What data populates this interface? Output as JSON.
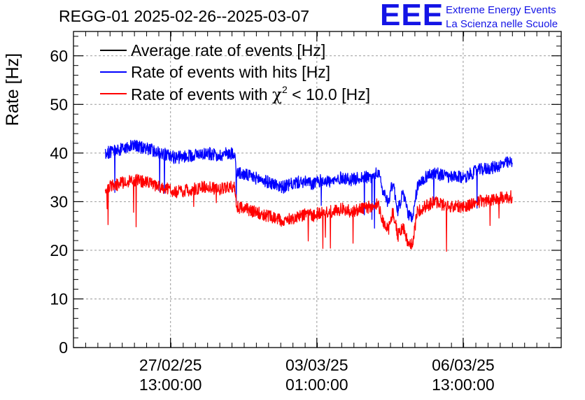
{
  "title": "REGG-01 2025-02-26--2025-03-07",
  "logo": {
    "mark": "EEE",
    "line1": "Extreme Energy Events",
    "line2": "La Scienza nelle Scuole"
  },
  "colors": {
    "average": "#000000",
    "hits": "#0000ff",
    "chi2": "#ff0000",
    "grid": "#9a9a9a",
    "logo": "#1414e6"
  },
  "chart_data": {
    "type": "line",
    "title": "REGG-01 2025-02-26--2025-03-07",
    "xlabel": "",
    "ylabel": "Rate [Hz]",
    "ylim": [
      0,
      65
    ],
    "xlim_days": [
      0,
      10
    ],
    "yticks": [
      0,
      10,
      20,
      30,
      40,
      50,
      60
    ],
    "xticks": [
      {
        "day": 1.99,
        "label1": "27/02/25",
        "label2": "13:00:00"
      },
      {
        "day": 4.99,
        "label1": "03/03/25",
        "label2": "01:00:00"
      },
      {
        "day": 7.99,
        "label1": "06/03/25",
        "label2": "13:00:00"
      }
    ],
    "grid": true,
    "legend": {
      "position": "top-left",
      "entries": [
        {
          "series": "average",
          "text": "Average rate of events [Hz]"
        },
        {
          "series": "hits",
          "text": "Rate of events with hits [Hz]"
        },
        {
          "series": "chi2",
          "text_pre": "Rate of events with ",
          "chi": "χ",
          "sup": "2",
          "text_post": " < 10.0 [Hz]"
        }
      ]
    },
    "series": [
      {
        "name": "Rate of events with hits [Hz]",
        "key": "hits",
        "x": [
          0.65,
          0.9,
          1.2,
          1.5,
          1.8,
          2.1,
          2.4,
          2.7,
          3.0,
          3.15,
          3.3,
          3.35,
          3.7,
          4.0,
          4.3,
          4.6,
          4.8,
          4.9,
          5.1,
          5.3,
          5.5,
          5.7,
          5.9,
          6.1,
          6.25,
          6.35,
          6.45,
          6.55,
          6.65,
          6.75,
          6.85,
          6.95,
          7.05,
          7.2,
          7.4,
          7.7,
          8.0,
          8.3,
          8.6,
          8.9,
          9.0
        ],
        "values": [
          40,
          40.5,
          41.5,
          41,
          40,
          39,
          39.5,
          40,
          39.5,
          40,
          40,
          36,
          35,
          34,
          33,
          34,
          34,
          33.5,
          34.5,
          34,
          35,
          34.5,
          35,
          35,
          36,
          32,
          30,
          34,
          28,
          32,
          28,
          26,
          33,
          35,
          36,
          35,
          35,
          36.5,
          37,
          38,
          38
        ]
      },
      {
        "name": "Rate of events with χ2 < 10.0 [Hz]",
        "key": "chi2",
        "x": [
          0.65,
          0.9,
          1.2,
          1.5,
          1.8,
          2.1,
          2.4,
          2.7,
          3.0,
          3.15,
          3.3,
          3.35,
          3.7,
          4.0,
          4.3,
          4.6,
          4.8,
          4.9,
          5.1,
          5.3,
          5.5,
          5.7,
          5.9,
          6.1,
          6.25,
          6.35,
          6.45,
          6.55,
          6.65,
          6.75,
          6.85,
          6.95,
          7.05,
          7.2,
          7.4,
          7.7,
          8.0,
          8.3,
          8.6,
          8.9,
          9.0
        ],
        "values": [
          33,
          33.5,
          34.5,
          34,
          33,
          32,
          32.5,
          33,
          32.5,
          33,
          33,
          29,
          28,
          27,
          26,
          27,
          27.5,
          27,
          28,
          28,
          28.5,
          28,
          28.5,
          29,
          29.5,
          26,
          24,
          28,
          23,
          25,
          22,
          21,
          28,
          29,
          30,
          29,
          29,
          30,
          30.5,
          31,
          31
        ]
      },
      {
        "name": "Average rate of events [Hz]",
        "key": "average",
        "x": [],
        "values": []
      }
    ]
  }
}
